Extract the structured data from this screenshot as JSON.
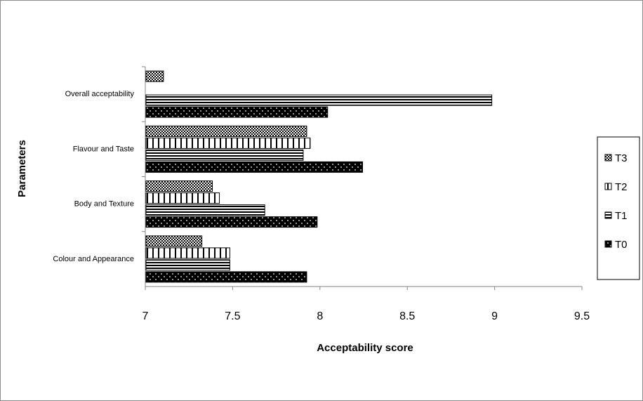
{
  "chart_data": {
    "type": "bar",
    "orientation": "horizontal",
    "categories": [
      "Colour and Appearance",
      "Body and Texture",
      "Flavour and Taste",
      "Overall acceptability"
    ],
    "series": [
      {
        "name": "T0",
        "values": [
          7.92,
          7.98,
          8.24,
          8.04
        ],
        "pattern": "dotted-black"
      },
      {
        "name": "T1",
        "values": [
          7.48,
          7.68,
          7.9,
          8.98
        ],
        "pattern": "horizontal-lines"
      },
      {
        "name": "T2",
        "values": [
          7.48,
          7.42,
          7.94,
          null
        ],
        "pattern": "vertical-lines"
      },
      {
        "name": "T3",
        "values": [
          7.32,
          7.38,
          7.92,
          7.1
        ],
        "pattern": "checker"
      }
    ],
    "xlabel": "Acceptability score",
    "ylabel": "Parameters",
    "xlim": [
      7,
      9.5
    ],
    "xticks": [
      "7",
      "7.5",
      "8",
      "8.5",
      "9",
      "9.5"
    ],
    "xtick_values": [
      7,
      7.5,
      8,
      8.5,
      9,
      9.5
    ],
    "grid": false,
    "legend_position": "right",
    "legend_order": [
      "T3",
      "T2",
      "T1",
      "T0"
    ],
    "colors": {
      "bar": "#000000",
      "background": "#ffffff",
      "frame": "#8c8c8c"
    }
  }
}
